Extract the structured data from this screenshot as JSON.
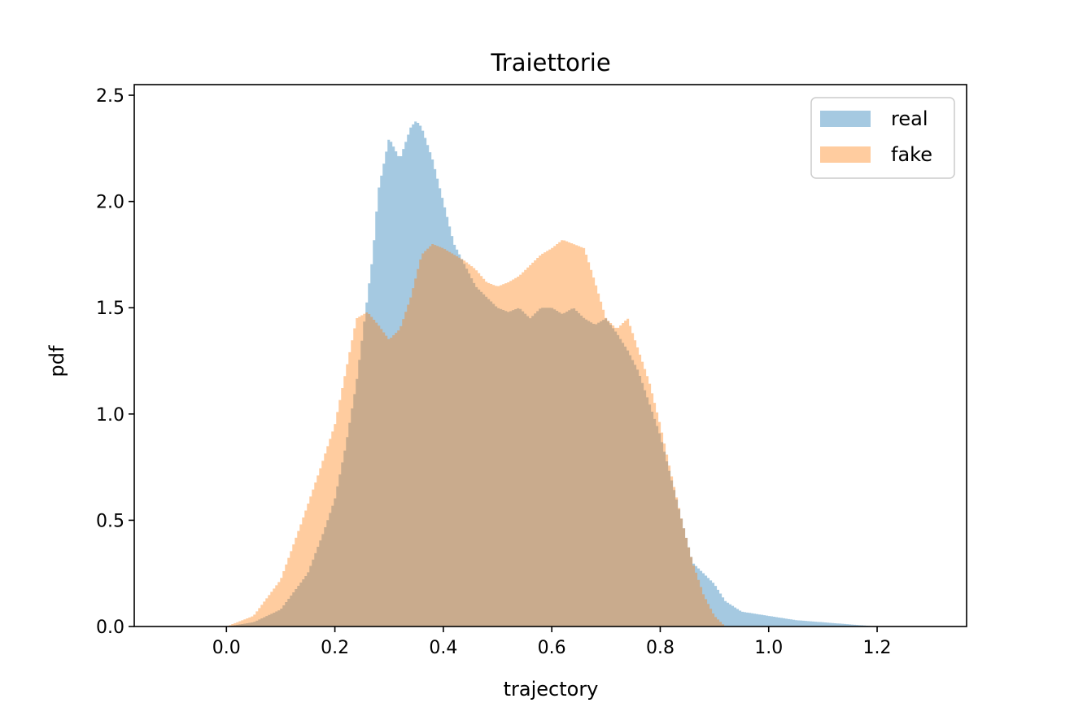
{
  "chart_data": {
    "type": "histogram",
    "title": "Traiettorie",
    "xlabel": "trajectory",
    "ylabel": "pdf",
    "xlim": [
      -0.17,
      1.365
    ],
    "ylim": [
      0,
      2.55
    ],
    "xticks": [
      "0.0",
      "0.2",
      "0.4",
      "0.6",
      "0.8",
      "1.0",
      "1.2"
    ],
    "yticks": [
      "0.0",
      "0.5",
      "1.0",
      "1.5",
      "2.0",
      "2.5"
    ],
    "grid": false,
    "legend_position": "top-right",
    "series": [
      {
        "name": "real",
        "color": "#1f77b4",
        "alpha": 0.4,
        "x": [
          0.0,
          0.05,
          0.1,
          0.15,
          0.18,
          0.2,
          0.22,
          0.24,
          0.25,
          0.26,
          0.27,
          0.28,
          0.3,
          0.32,
          0.34,
          0.35,
          0.36,
          0.38,
          0.4,
          0.42,
          0.44,
          0.46,
          0.48,
          0.5,
          0.52,
          0.54,
          0.56,
          0.58,
          0.6,
          0.62,
          0.64,
          0.66,
          0.68,
          0.7,
          0.72,
          0.74,
          0.76,
          0.78,
          0.8,
          0.82,
          0.84,
          0.86,
          0.88,
          0.9,
          0.92,
          0.95,
          1.0,
          1.05,
          1.1,
          1.15,
          1.2
        ],
        "y": [
          0.0,
          0.02,
          0.08,
          0.25,
          0.45,
          0.6,
          0.85,
          1.15,
          1.35,
          1.55,
          1.75,
          2.05,
          2.3,
          2.2,
          2.35,
          2.38,
          2.35,
          2.2,
          2.0,
          1.8,
          1.7,
          1.6,
          1.55,
          1.5,
          1.48,
          1.5,
          1.45,
          1.5,
          1.5,
          1.47,
          1.5,
          1.45,
          1.42,
          1.45,
          1.38,
          1.3,
          1.2,
          1.05,
          0.9,
          0.7,
          0.5,
          0.3,
          0.25,
          0.2,
          0.12,
          0.07,
          0.05,
          0.03,
          0.02,
          0.01,
          0.0
        ]
      },
      {
        "name": "fake",
        "color": "#ff7f0e",
        "alpha": 0.4,
        "x": [
          0.0,
          0.05,
          0.1,
          0.14,
          0.17,
          0.2,
          0.22,
          0.24,
          0.26,
          0.28,
          0.3,
          0.32,
          0.34,
          0.36,
          0.38,
          0.4,
          0.42,
          0.44,
          0.46,
          0.48,
          0.5,
          0.52,
          0.54,
          0.56,
          0.58,
          0.6,
          0.62,
          0.64,
          0.66,
          0.68,
          0.7,
          0.72,
          0.74,
          0.76,
          0.78,
          0.8,
          0.82,
          0.84,
          0.86,
          0.88,
          0.9,
          0.92
        ],
        "y": [
          0.0,
          0.05,
          0.22,
          0.5,
          0.72,
          0.95,
          1.2,
          1.45,
          1.48,
          1.42,
          1.35,
          1.4,
          1.55,
          1.75,
          1.8,
          1.78,
          1.75,
          1.72,
          1.68,
          1.62,
          1.6,
          1.62,
          1.65,
          1.7,
          1.75,
          1.78,
          1.82,
          1.8,
          1.78,
          1.62,
          1.45,
          1.4,
          1.45,
          1.3,
          1.15,
          0.95,
          0.72,
          0.5,
          0.3,
          0.15,
          0.05,
          0.0
        ]
      }
    ]
  }
}
